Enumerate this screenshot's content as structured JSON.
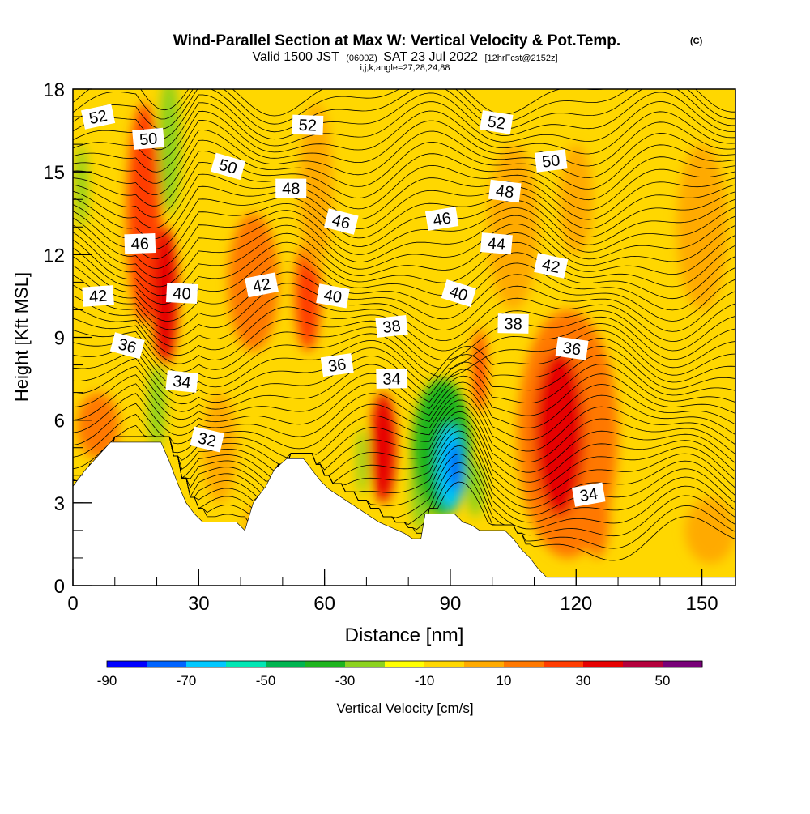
{
  "chart_data": {
    "type": "heatmap",
    "title": "Wind-Parallel Section at Max W: Vertical Velocity & Pot.Temp.",
    "title_mark": "(C)",
    "subtitle": {
      "valid_prefix": "Valid 1500 JST",
      "utc": "(0600Z)",
      "date": "SAT 23 Jul 2022",
      "forecast": "[12hrFcst@2152z]"
    },
    "indices": "i,j,k,angle=27,28,24,88",
    "xlabel": "Distance [nm]",
    "ylabel": "Height [Kft MSL]",
    "xlim": [
      0,
      158
    ],
    "ylim": [
      0,
      18
    ],
    "x_ticks": [
      0,
      30,
      60,
      90,
      120,
      150
    ],
    "y_ticks": [
      0,
      3,
      6,
      9,
      12,
      15,
      18
    ],
    "colorbar": {
      "label": "Vertical Velocity [cm/s]",
      "tick_values": [
        -90,
        -70,
        -50,
        -30,
        -10,
        10,
        30,
        50
      ],
      "bins": [
        {
          "from": -90,
          "to": -80,
          "color": "#0000ff"
        },
        {
          "from": -80,
          "to": -70,
          "color": "#0064ff"
        },
        {
          "from": -70,
          "to": -60,
          "color": "#00c8ff"
        },
        {
          "from": -60,
          "to": -50,
          "color": "#00e6b4"
        },
        {
          "from": -50,
          "to": -40,
          "color": "#00b450"
        },
        {
          "from": -40,
          "to": -30,
          "color": "#1eb41e"
        },
        {
          "from": -30,
          "to": -20,
          "color": "#8cd21e"
        },
        {
          "from": -20,
          "to": -10,
          "color": "#ffff00"
        },
        {
          "from": -10,
          "to": 0,
          "color": "#ffd700"
        },
        {
          "from": 0,
          "to": 10,
          "color": "#ffaa00"
        },
        {
          "from": 10,
          "to": 20,
          "color": "#ff7800"
        },
        {
          "from": 20,
          "to": 30,
          "color": "#ff3c00"
        },
        {
          "from": 30,
          "to": 40,
          "color": "#e60000"
        },
        {
          "from": 40,
          "to": 50,
          "color": "#b4003c"
        },
        {
          "from": 50,
          "to": 60,
          "color": "#780078"
        }
      ]
    },
    "terrain_profile": [
      [
        0,
        3.6
      ],
      [
        3,
        4.2
      ],
      [
        6,
        4.7
      ],
      [
        9,
        5.2
      ],
      [
        21,
        5.2
      ],
      [
        23,
        4.5
      ],
      [
        25,
        3.7
      ],
      [
        27,
        3.0
      ],
      [
        29,
        2.6
      ],
      [
        31,
        2.3
      ],
      [
        39,
        2.3
      ],
      [
        41,
        2.0
      ],
      [
        43,
        3.0
      ],
      [
        46,
        3.6
      ],
      [
        48,
        4.2
      ],
      [
        51,
        4.6
      ],
      [
        55,
        4.6
      ],
      [
        57,
        4.2
      ],
      [
        59,
        3.8
      ],
      [
        61,
        3.5
      ],
      [
        64,
        3.2
      ],
      [
        67,
        2.9
      ],
      [
        70,
        2.6
      ],
      [
        73,
        2.3
      ],
      [
        76,
        2.1
      ],
      [
        79,
        1.9
      ],
      [
        81,
        1.7
      ],
      [
        83,
        1.7
      ],
      [
        84,
        2.6
      ],
      [
        91,
        2.6
      ],
      [
        93,
        2.3
      ],
      [
        95,
        2.2
      ],
      [
        97,
        2.0
      ],
      [
        103,
        2.0
      ],
      [
        105,
        1.7
      ],
      [
        107,
        1.3
      ],
      [
        109,
        1.0
      ],
      [
        111,
        0.6
      ],
      [
        113,
        0.3
      ],
      [
        158,
        0.3
      ]
    ],
    "vertical_velocity_features": [
      {
        "x": 17,
        "y": 13.5,
        "rx": 4,
        "ry": 4,
        "value": 25
      },
      {
        "x": 22,
        "y": 10.5,
        "rx": 3,
        "ry": 2.5,
        "value": 30
      },
      {
        "x": 23,
        "y": 16.0,
        "rx": 2.5,
        "ry": 2.5,
        "value": -30
      },
      {
        "x": 20,
        "y": 6.5,
        "rx": 2,
        "ry": 1.5,
        "value": -25
      },
      {
        "x": 6,
        "y": 5.8,
        "rx": 5,
        "ry": 1.2,
        "value": 15
      },
      {
        "x": 2,
        "y": 14.5,
        "rx": 1.5,
        "ry": 1.5,
        "value": -25
      },
      {
        "x": 43,
        "y": 11.0,
        "rx": 6,
        "ry": 2.5,
        "value": 12
      },
      {
        "x": 56,
        "y": 10.5,
        "rx": 3,
        "ry": 2,
        "value": 25
      },
      {
        "x": 58,
        "y": 14.5,
        "rx": 4,
        "ry": 3,
        "value": 5
      },
      {
        "x": 74,
        "y": 5.0,
        "rx": 3,
        "ry": 2,
        "value": 30
      },
      {
        "x": 69,
        "y": 4.5,
        "rx": 1.2,
        "ry": 1.2,
        "value": -25
      },
      {
        "x": 83,
        "y": 3.5,
        "rx": 2.5,
        "ry": 1.5,
        "value": -30
      },
      {
        "x": 88,
        "y": 5.0,
        "rx": 7,
        "ry": 2.5,
        "value": -35
      },
      {
        "x": 90,
        "y": 4.3,
        "rx": 3,
        "ry": 1.5,
        "value": -65
      },
      {
        "x": 91,
        "y": 4.3,
        "rx": 1.2,
        "ry": 0.9,
        "value": -85
      },
      {
        "x": 96,
        "y": 3.5,
        "rx": 2,
        "ry": 1,
        "value": -30
      },
      {
        "x": 97,
        "y": 7.8,
        "rx": 1.5,
        "ry": 1.5,
        "value": 20
      },
      {
        "x": 118,
        "y": 5.5,
        "rx": 12,
        "ry": 4.5,
        "value": 15
      },
      {
        "x": 116,
        "y": 5.5,
        "rx": 6,
        "ry": 3,
        "value": 30
      },
      {
        "x": 125,
        "y": 2.5,
        "rx": 3,
        "ry": 1.5,
        "value": 15
      },
      {
        "x": 105,
        "y": 13.0,
        "rx": 6,
        "ry": 3,
        "value": 5
      },
      {
        "x": 120,
        "y": 14.0,
        "rx": 4,
        "ry": 2,
        "value": 5
      },
      {
        "x": 150,
        "y": 13.0,
        "rx": 6,
        "ry": 3,
        "value": 5
      },
      {
        "x": 140,
        "y": 9.5,
        "rx": 5,
        "ry": 1.5,
        "value": -5
      },
      {
        "x": 152,
        "y": 2.0,
        "rx": 6,
        "ry": 1.2,
        "value": 5
      },
      {
        "x": 45,
        "y": 2.2,
        "rx": 4,
        "ry": 0.8,
        "value": 5
      },
      {
        "x": 35,
        "y": 5.0,
        "rx": 4,
        "ry": 2,
        "value": 5
      }
    ],
    "theta_contour_labels": [
      {
        "x": 6,
        "y": 17.0,
        "label": "52"
      },
      {
        "x": 18,
        "y": 16.2,
        "label": "50"
      },
      {
        "x": 56,
        "y": 16.7,
        "label": "52"
      },
      {
        "x": 101,
        "y": 16.8,
        "label": "52"
      },
      {
        "x": 37,
        "y": 15.2,
        "label": "50"
      },
      {
        "x": 114,
        "y": 15.4,
        "label": "50"
      },
      {
        "x": 52,
        "y": 14.4,
        "label": "48"
      },
      {
        "x": 103,
        "y": 14.3,
        "label": "48"
      },
      {
        "x": 64,
        "y": 13.2,
        "label": "46"
      },
      {
        "x": 88,
        "y": 13.3,
        "label": "46"
      },
      {
        "x": 16,
        "y": 12.4,
        "label": "46"
      },
      {
        "x": 101,
        "y": 12.4,
        "label": "44"
      },
      {
        "x": 114,
        "y": 11.6,
        "label": "42"
      },
      {
        "x": 45,
        "y": 10.9,
        "label": "42"
      },
      {
        "x": 6,
        "y": 10.5,
        "label": "42"
      },
      {
        "x": 26,
        "y": 10.6,
        "label": "40"
      },
      {
        "x": 62,
        "y": 10.5,
        "label": "40"
      },
      {
        "x": 92,
        "y": 10.6,
        "label": "40"
      },
      {
        "x": 76,
        "y": 9.4,
        "label": "38"
      },
      {
        "x": 105,
        "y": 9.5,
        "label": "38"
      },
      {
        "x": 119,
        "y": 8.6,
        "label": "36"
      },
      {
        "x": 13,
        "y": 8.7,
        "label": "36"
      },
      {
        "x": 63,
        "y": 8.0,
        "label": "36"
      },
      {
        "x": 76,
        "y": 7.5,
        "label": "34"
      },
      {
        "x": 26,
        "y": 7.4,
        "label": "34"
      },
      {
        "x": 32,
        "y": 5.3,
        "label": "32"
      },
      {
        "x": 123,
        "y": 3.3,
        "label": "34"
      }
    ]
  }
}
